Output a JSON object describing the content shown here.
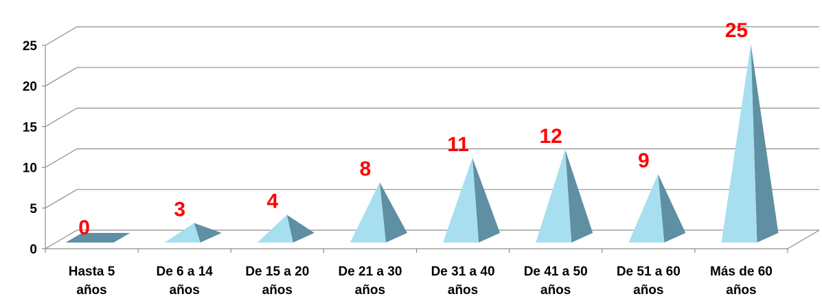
{
  "chart_data": {
    "type": "bar",
    "style": "3d-pyramid",
    "categories": [
      [
        "Hasta 5",
        "años"
      ],
      [
        "De 6 a 14",
        "años"
      ],
      [
        "De 15 a 20",
        "años"
      ],
      [
        "De 21 a 30",
        "años"
      ],
      [
        "De 31 a 40",
        "años"
      ],
      [
        "De 41 a 50",
        "años"
      ],
      [
        "De 51 a 60",
        "años"
      ],
      [
        "Más de 60",
        "años"
      ]
    ],
    "values": [
      0,
      3,
      4,
      8,
      11,
      12,
      9,
      25
    ],
    "data_labels": [
      "0",
      "3",
      "4",
      "8",
      "11",
      "12",
      "9",
      "25"
    ],
    "title": "",
    "xlabel": "",
    "ylabel": "",
    "ylim": [
      0,
      25
    ],
    "yticks": [
      0,
      5,
      10,
      15,
      20,
      25
    ],
    "grid": true,
    "legend": "none",
    "colors": {
      "pyramid_light": "#a8dff0",
      "pyramid_dark": "#5f8fa3",
      "data_label": "#ff0000",
      "gridline": "#8c8c8c"
    }
  }
}
